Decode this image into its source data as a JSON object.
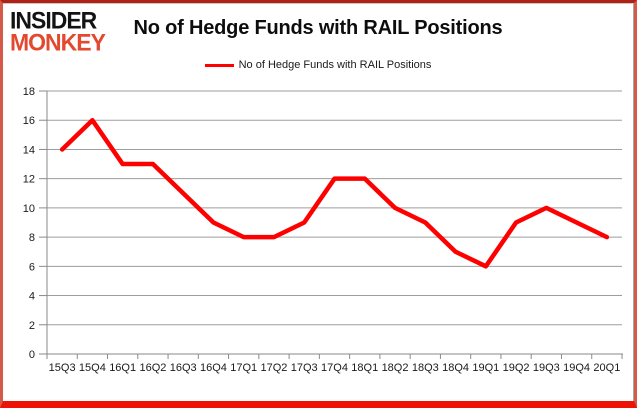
{
  "logo": {
    "line1": "INSIDER",
    "line2": "MONKEY"
  },
  "header": {
    "title": "No of Hedge Funds with RAIL Positions"
  },
  "legend": {
    "label": "No of Hedge Funds with RAIL Positions",
    "line_color": "#ff0000"
  },
  "colors": {
    "series_red": "#ff0000",
    "gridline_gray": "#9d9d9d",
    "axis_gray": "#8a8a8a",
    "label_color": "#1a1a1a",
    "frame_red": "#ee1405",
    "logo_red": "#e2492f"
  },
  "chart_data": {
    "type": "line",
    "title": "No of Hedge Funds with RAIL Positions",
    "categories": [
      "15Q3",
      "15Q4",
      "16Q1",
      "16Q2",
      "16Q3",
      "16Q4",
      "17Q1",
      "17Q2",
      "17Q3",
      "17Q4",
      "18Q1",
      "18Q2",
      "18Q3",
      "18Q4",
      "19Q1",
      "19Q2",
      "19Q3",
      "19Q4",
      "20Q1"
    ],
    "series": [
      {
        "name": "No of Hedge Funds with RAIL Positions",
        "color": "#ff0000",
        "values": [
          14,
          16,
          13,
          13,
          11,
          9,
          8,
          8,
          9,
          12,
          12,
          10,
          9,
          7,
          6,
          9,
          10,
          9,
          8
        ]
      }
    ],
    "xlabel": "",
    "ylabel": "",
    "ylim": [
      0,
      18
    ],
    "ytick_step": 2,
    "grid": true,
    "legend_position": "top"
  }
}
